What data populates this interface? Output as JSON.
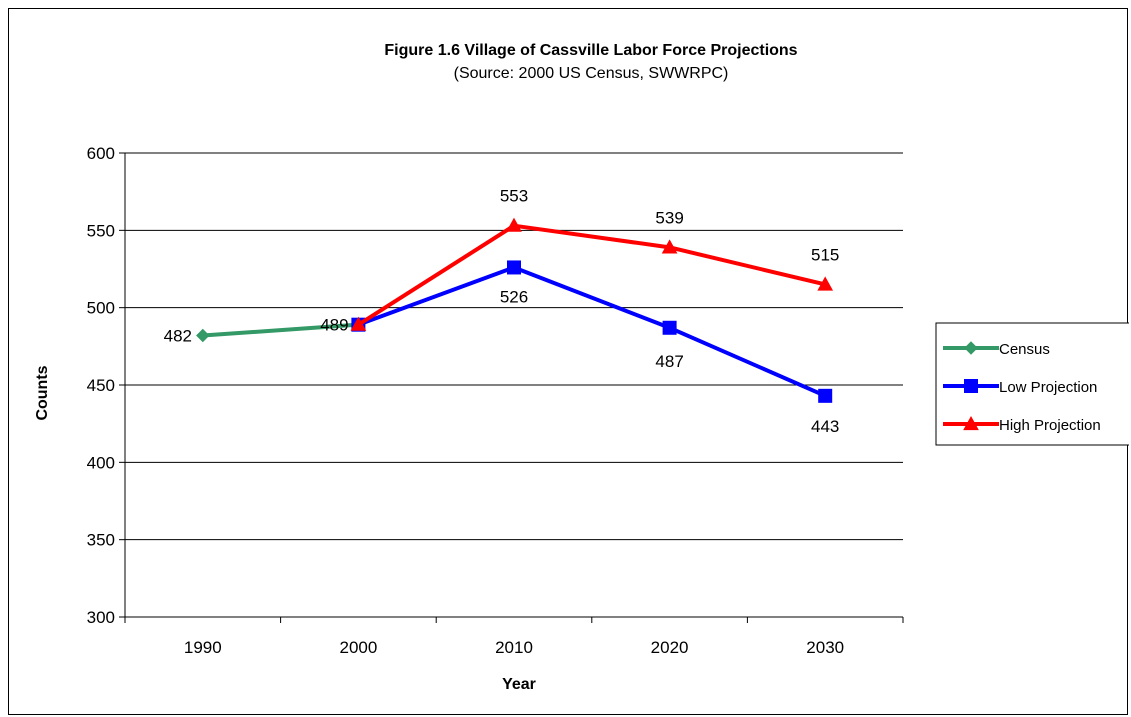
{
  "chart_data": {
    "type": "line",
    "title": "Figure 1.6 Village of Cassville Labor Force Projections",
    "subtitle": "(Source:  2000 US Census, SWWRPC)",
    "xlabel": "Year",
    "ylabel": "Counts",
    "categories": [
      "1990",
      "2000",
      "2010",
      "2020",
      "2030"
    ],
    "ylim": [
      300,
      600
    ],
    "yticks": [
      300,
      350,
      400,
      450,
      500,
      550,
      600
    ],
    "grid": "horizontal",
    "legend_position": "right",
    "series": [
      {
        "name": "Census",
        "color": "#339966",
        "marker": "diamond",
        "values": [
          482,
          489,
          null,
          null,
          null
        ],
        "labels": [
          "482",
          "489",
          "",
          "",
          ""
        ]
      },
      {
        "name": "Low Projection",
        "color": "#0000FF",
        "marker": "square",
        "values": [
          null,
          489,
          526,
          487,
          443
        ],
        "labels": [
          "",
          "",
          "526",
          "487",
          "443"
        ]
      },
      {
        "name": "High Projection",
        "color": "#FF0000",
        "marker": "triangle",
        "values": [
          null,
          489,
          553,
          539,
          515
        ],
        "labels": [
          "",
          "",
          "553",
          "539",
          "515"
        ]
      }
    ]
  }
}
